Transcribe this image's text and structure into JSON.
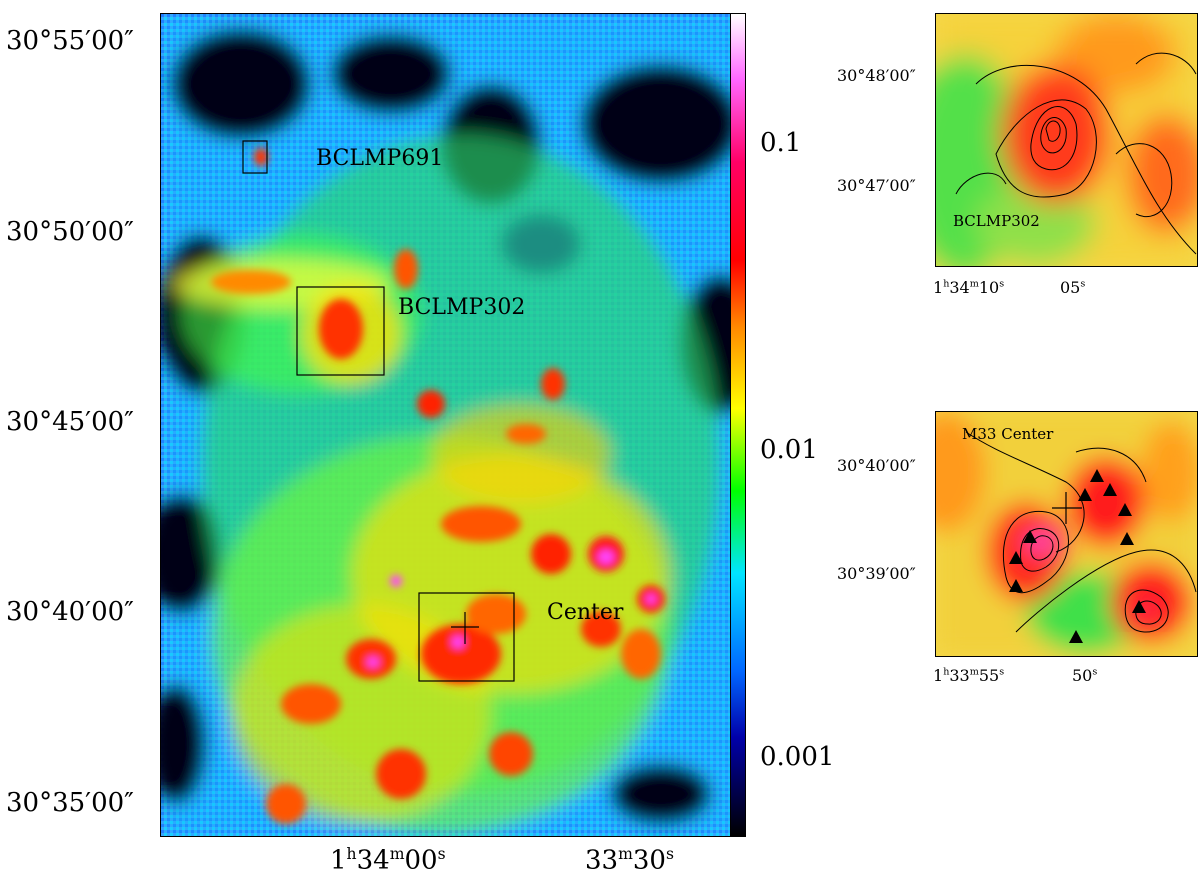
{
  "main_map": {
    "y_ticks": [
      "30°55′00″",
      "30°50′00″",
      "30°45′00″",
      "30°40′00″",
      "30°35′00″"
    ],
    "x_ticks": [
      {
        "h": "1",
        "hu": "h",
        "m": "34",
        "mu": "m",
        "s": "00",
        "su": "s"
      },
      {
        "h": "",
        "hu": "",
        "m": "33",
        "mu": "m",
        "s": "30",
        "su": "s"
      }
    ],
    "regions": [
      {
        "label": "BCLMP691"
      },
      {
        "label": "BCLMP302"
      },
      {
        "label": "Center"
      }
    ]
  },
  "colorbar": {
    "labels": [
      "0.1",
      "0.01",
      "0.001"
    ],
    "colors": [
      "#ffffff",
      "#ff66ff",
      "#ff0066",
      "#ff0000",
      "#ff8800",
      "#ffff00",
      "#00ff00",
      "#00e5ff",
      "#0066ff",
      "#0000aa",
      "#000000"
    ]
  },
  "inset_top": {
    "y_ticks": [
      "30°48′00″",
      "30°47′00″"
    ],
    "x_ticks": [
      {
        "h": "1",
        "hu": "h",
        "m": "34",
        "mu": "m",
        "s": "10",
        "su": "s"
      },
      {
        "h": "",
        "hu": "",
        "m": "",
        "mu": "",
        "s": "05",
        "su": "s"
      }
    ],
    "label": "BCLMP302"
  },
  "inset_bottom": {
    "y_ticks": [
      "30°40′00″",
      "30°39′00″"
    ],
    "x_ticks": [
      {
        "h": "1",
        "hu": "h",
        "m": "33",
        "mu": "m",
        "s": "55",
        "su": "s"
      },
      {
        "h": "",
        "hu": "",
        "m": "",
        "mu": "",
        "s": "50",
        "su": "s"
      }
    ],
    "label": "M33 Center"
  }
}
